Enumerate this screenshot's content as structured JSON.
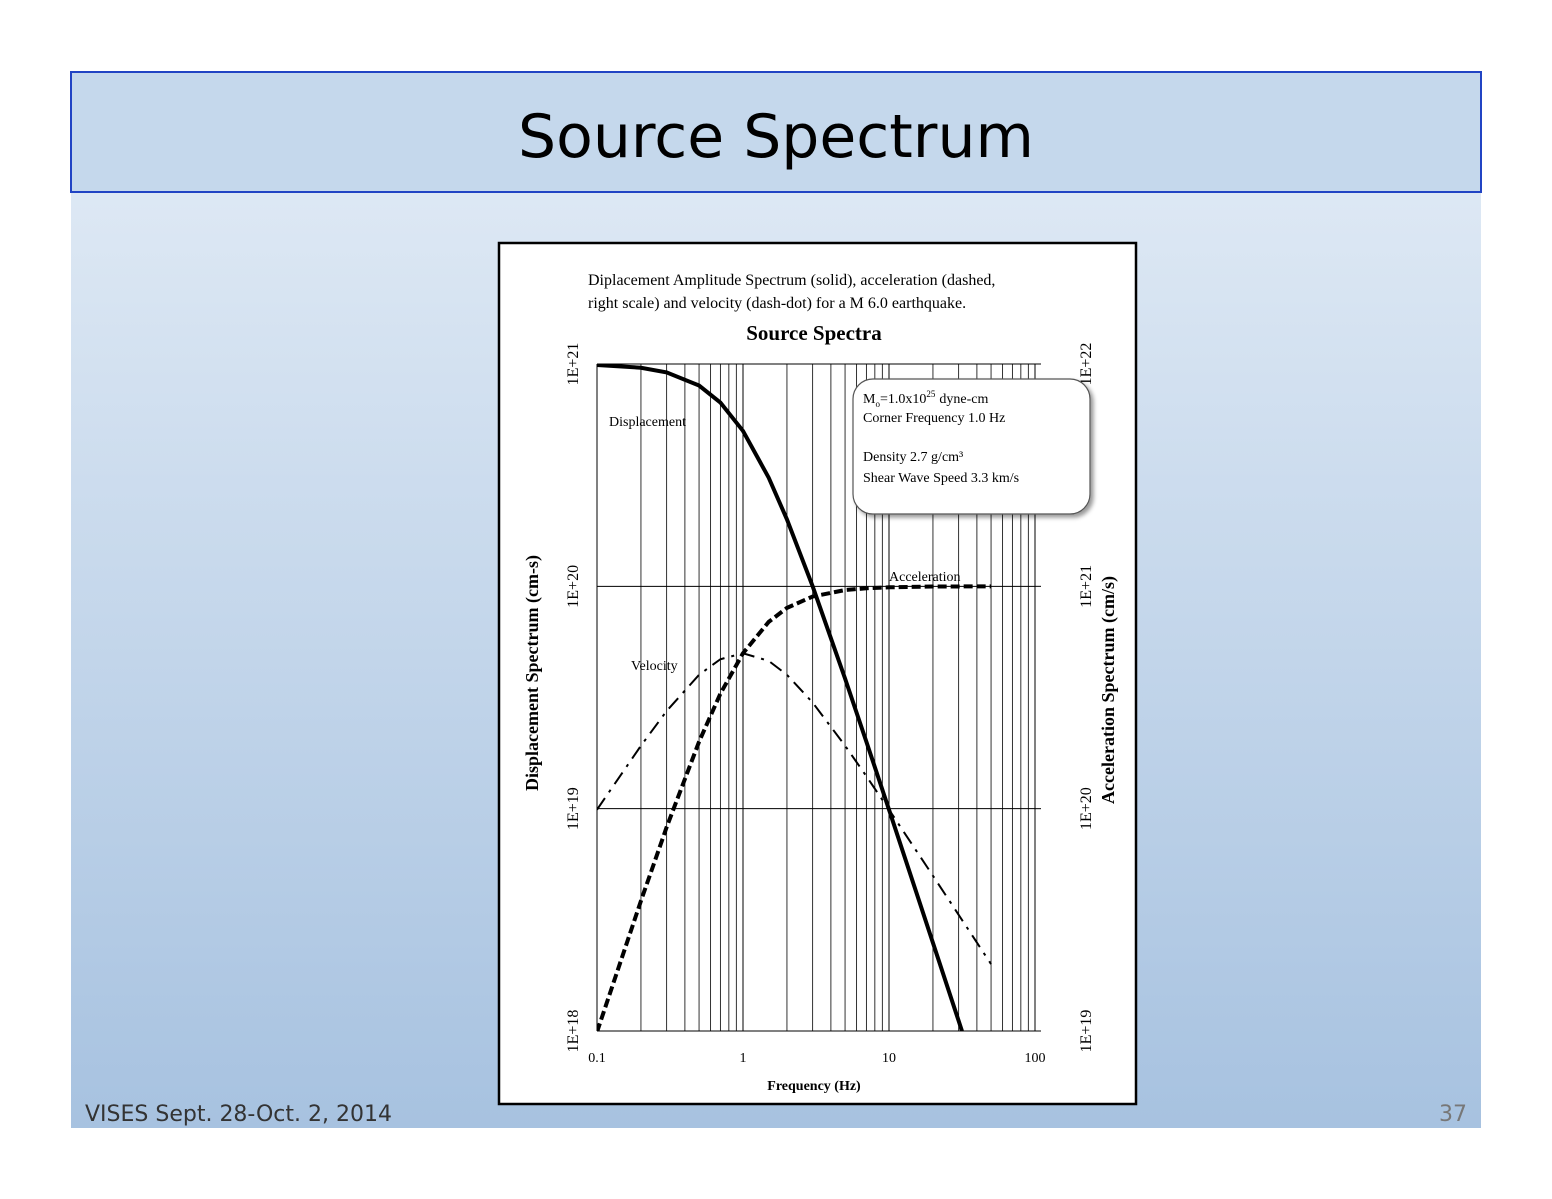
{
  "slide": {
    "title": "Source Spectrum",
    "footer": "VISES Sept. 28-Oct. 2, 2014",
    "page_number": "37"
  },
  "chart_data": {
    "type": "line",
    "title": "Source Spectra",
    "subtitle": [
      "Diplacement Amplitude Spectrum (solid), acceleration (dashed,",
      "right scale) and velocity (dash-dot) for a M 6.0 earthquake."
    ],
    "x_label": "Frequency (Hz)",
    "y_label": "Displacement Spectrum (cm-s)",
    "y2_label": "Acceleration Spectrum (cm/s)",
    "x_log": true,
    "y_log": true,
    "y2_log": true,
    "grid": true,
    "color": "#000000",
    "xlim": [
      0.1,
      100
    ],
    "xticks": [
      0.1,
      1,
      10,
      100
    ],
    "ylim": [
      1e+18,
      1e+21
    ],
    "yticks": [
      {
        "value": 1e+18,
        "label": "1E+18"
      },
      {
        "value": 1e+19,
        "label": "1E+19"
      },
      {
        "value": 1e+20,
        "label": "1E+20"
      },
      {
        "value": 1e+21,
        "label": "1E+21"
      }
    ],
    "y2lim": [
      1e+19,
      1e+22
    ],
    "y2ticks": [
      {
        "value": 1e+19,
        "label": "1E+19"
      },
      {
        "value": 1e+20,
        "label": "1E+20"
      },
      {
        "value": 1e+21,
        "label": "1E+21"
      },
      {
        "value": 1e+22,
        "label": "1E+22"
      }
    ],
    "series": [
      {
        "name": "Displacement",
        "dash": "solid",
        "color": "#000000",
        "x": [
          0.1,
          0.2,
          0.3,
          0.5,
          0.7,
          1,
          1.5,
          2,
          3,
          5,
          7,
          10,
          15,
          20,
          30,
          31.6
        ],
        "values": [
          9.9e+20,
          9.62e+20,
          9.17e+20,
          8e+20,
          6.71e+20,
          5e+20,
          3.08e+20,
          2e+20,
          1e+20,
          3.85e+19,
          2e+19,
          9.9e+18,
          4.42e+18,
          2.49e+18,
          1.11e+18,
          1e+18
        ]
      },
      {
        "name": "Acceleration",
        "dash": "dashed",
        "color": "#000000",
        "axis": "y2",
        "x": [
          0.1,
          0.2,
          0.3,
          0.5,
          0.7,
          1,
          1.5,
          2,
          3,
          5,
          7,
          10,
          20,
          50
        ],
        "values": [
          9.9e+18,
          3.85e+19,
          8.26e+19,
          2e+20,
          3.29e+20,
          5e+20,
          6.92e+20,
          8e+20,
          9e+20,
          9.62e+20,
          9.8e+20,
          9.9e+20,
          9.98e+20,
          1e+21
        ]
      },
      {
        "name": "Velocity",
        "dash": "dash-dot",
        "color": "#000000",
        "x": [
          0.1,
          0.2,
          0.3,
          0.5,
          0.7,
          1,
          1.5,
          2,
          3,
          5,
          7,
          10,
          20,
          50
        ],
        "values": [
          9.9e+18,
          1.92e+19,
          2.75e+19,
          4e+19,
          4.7e+19,
          5e+19,
          4.62e+19,
          4e+19,
          3e+19,
          1.92e+19,
          1.4e+19,
          9.9e+18,
          4.99e+18,
          2e+18
        ]
      }
    ],
    "info_box": {
      "moment": {
        "symbol": "M",
        "subscript": "o",
        "text": "=1.0x10",
        "superscript": "25",
        "unit": "dyne-cm"
      },
      "lines": [
        "Corner Frequency 1.0 Hz",
        "Density 2.7 g/cm³",
        "Shear Wave Speed 3.3 km/s"
      ]
    }
  }
}
